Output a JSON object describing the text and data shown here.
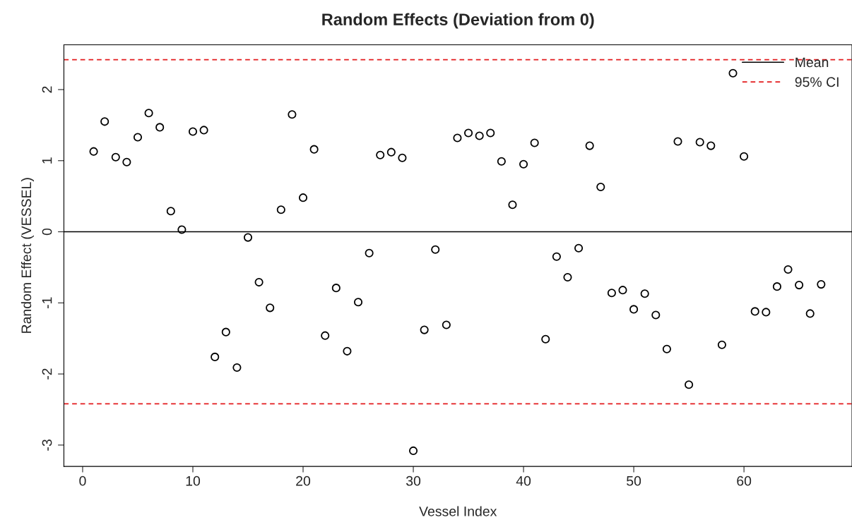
{
  "chart_data": {
    "type": "scatter",
    "title": "Random Effects (Deviation from 0)",
    "xlabel": "Vessel Index",
    "ylabel": "Random Effect (VESSEL)",
    "x": [
      1,
      2,
      3,
      4,
      5,
      6,
      7,
      8,
      9,
      10,
      11,
      12,
      13,
      14,
      15,
      16,
      17,
      18,
      19,
      20,
      21,
      22,
      23,
      24,
      25,
      26,
      27,
      28,
      29,
      30,
      31,
      32,
      33,
      34,
      35,
      36,
      37,
      38,
      39,
      40,
      41,
      42,
      43,
      44,
      45,
      46,
      47,
      48,
      49,
      50,
      51,
      52,
      53,
      54,
      55,
      56,
      57,
      58,
      59,
      60,
      61,
      62,
      63,
      64,
      65,
      66,
      67
    ],
    "series": [
      {
        "color": "#000000",
        "values": [
          1.13,
          1.55,
          1.05,
          0.98,
          1.33,
          1.67,
          1.47,
          0.29,
          0.03,
          1.41,
          1.43,
          -1.76,
          -1.41,
          -1.91,
          -0.08,
          -0.71,
          -1.07,
          0.31,
          1.65,
          0.48,
          1.16,
          -1.46,
          -0.79,
          -1.68,
          -0.99,
          -0.3,
          1.08,
          1.12,
          1.04,
          -3.08,
          -1.38,
          -0.25,
          -1.31,
          1.32,
          1.39,
          1.35,
          1.39,
          0.99,
          0.38,
          0.95,
          1.25,
          -1.51,
          -0.35,
          -0.64,
          -0.23,
          1.21,
          0.63,
          -0.86,
          -0.82,
          -1.09,
          -0.87,
          -1.17,
          -1.65,
          1.27,
          -2.15,
          1.26,
          1.21,
          -1.59,
          2.23,
          1.06,
          -1.12,
          -1.13,
          -0.77,
          -0.53,
          -0.75,
          -1.15,
          -0.74
        ]
      }
    ],
    "ref_lines": [
      {
        "axis": "y",
        "value": 0,
        "label": "Mean",
        "color": "#000000",
        "line_style": "solid"
      },
      {
        "axis": "y",
        "value": 2.42,
        "label": "95% CI",
        "color": "#e31a1c",
        "line_style": "dashed"
      },
      {
        "axis": "y",
        "value": -2.42,
        "color": "#e31a1c",
        "line_style": "dashed"
      }
    ],
    "xlim": [
      -1.7,
      69.8
    ],
    "ylim": [
      -3.3,
      2.63
    ],
    "xticks": [
      0,
      10,
      20,
      30,
      40,
      50,
      60
    ],
    "yticks": [
      -3,
      -2,
      -1,
      0,
      1,
      2
    ],
    "marker": "circle",
    "grid": false,
    "legend": "top right"
  }
}
